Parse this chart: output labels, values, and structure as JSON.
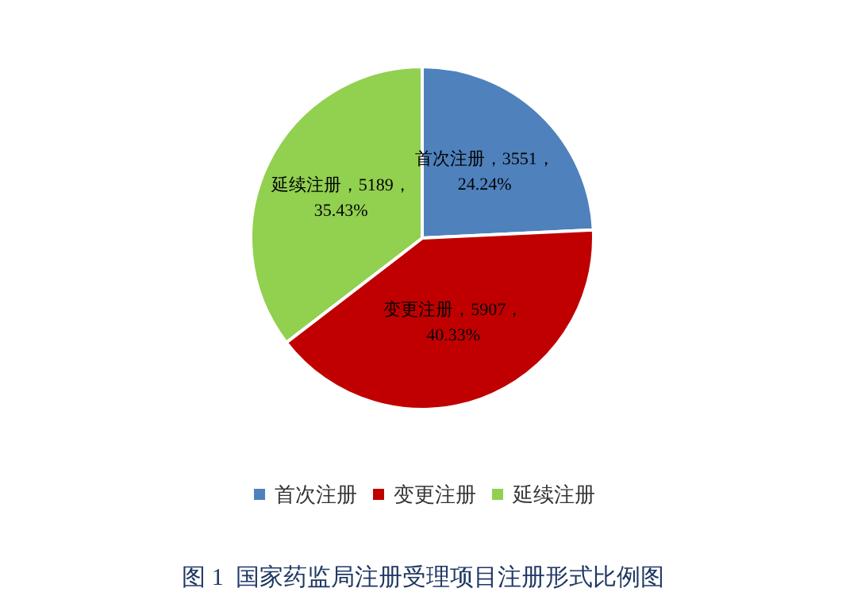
{
  "chart_data": {
    "type": "pie",
    "title": "图 1  国家药监局注册受理项目注册形式比例图",
    "categories": [
      "首次注册",
      "变更注册",
      "延续注册"
    ],
    "values": [
      3551,
      5907,
      5189
    ],
    "colors": [
      "#4f81bd",
      "#c00000",
      "#92d050"
    ],
    "value_labels": [
      "首次注册，3551，24.24%",
      "变更注册，5907，40.33%",
      "延续注册，5189，35.43%"
    ],
    "legend": "bottom"
  }
}
